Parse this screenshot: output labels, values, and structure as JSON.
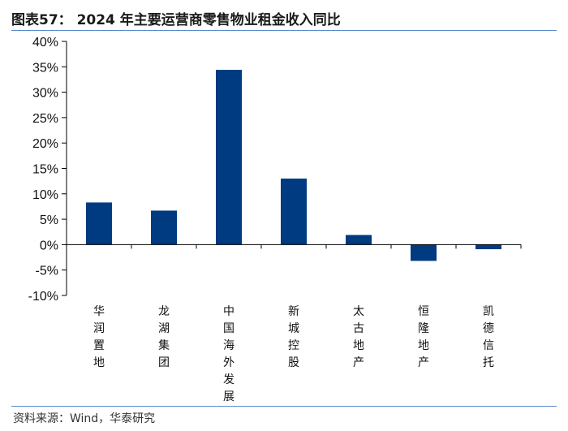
{
  "header": {
    "title": "图表57： 2024 年主要运营商零售物业租金收入同比"
  },
  "footer": {
    "source": "资料来源：Wind，华泰研究"
  },
  "colors": {
    "bar": "#003a80",
    "axis": "#000000",
    "rule": "#5a8ac6"
  },
  "chart_data": {
    "type": "bar",
    "title": "",
    "xlabel": "",
    "ylabel": "",
    "categories": [
      "华润置地",
      "龙湖集团",
      "中国海外发展",
      "新城控股",
      "太古地产",
      "恒隆地产",
      "凯德信托"
    ],
    "values": [
      8.3,
      6.7,
      34.4,
      13.0,
      1.9,
      -3.2,
      -0.9
    ],
    "ylim": [
      -10,
      40
    ],
    "yticks": [
      -10,
      -5,
      0,
      5,
      10,
      15,
      20,
      25,
      30,
      35,
      40
    ],
    "ytick_labels": [
      "-10%",
      "-5%",
      "0%",
      "5%",
      "10%",
      "15%",
      "20%",
      "25%",
      "30%",
      "35%",
      "40%"
    ],
    "grid": false,
    "legend": "none"
  }
}
